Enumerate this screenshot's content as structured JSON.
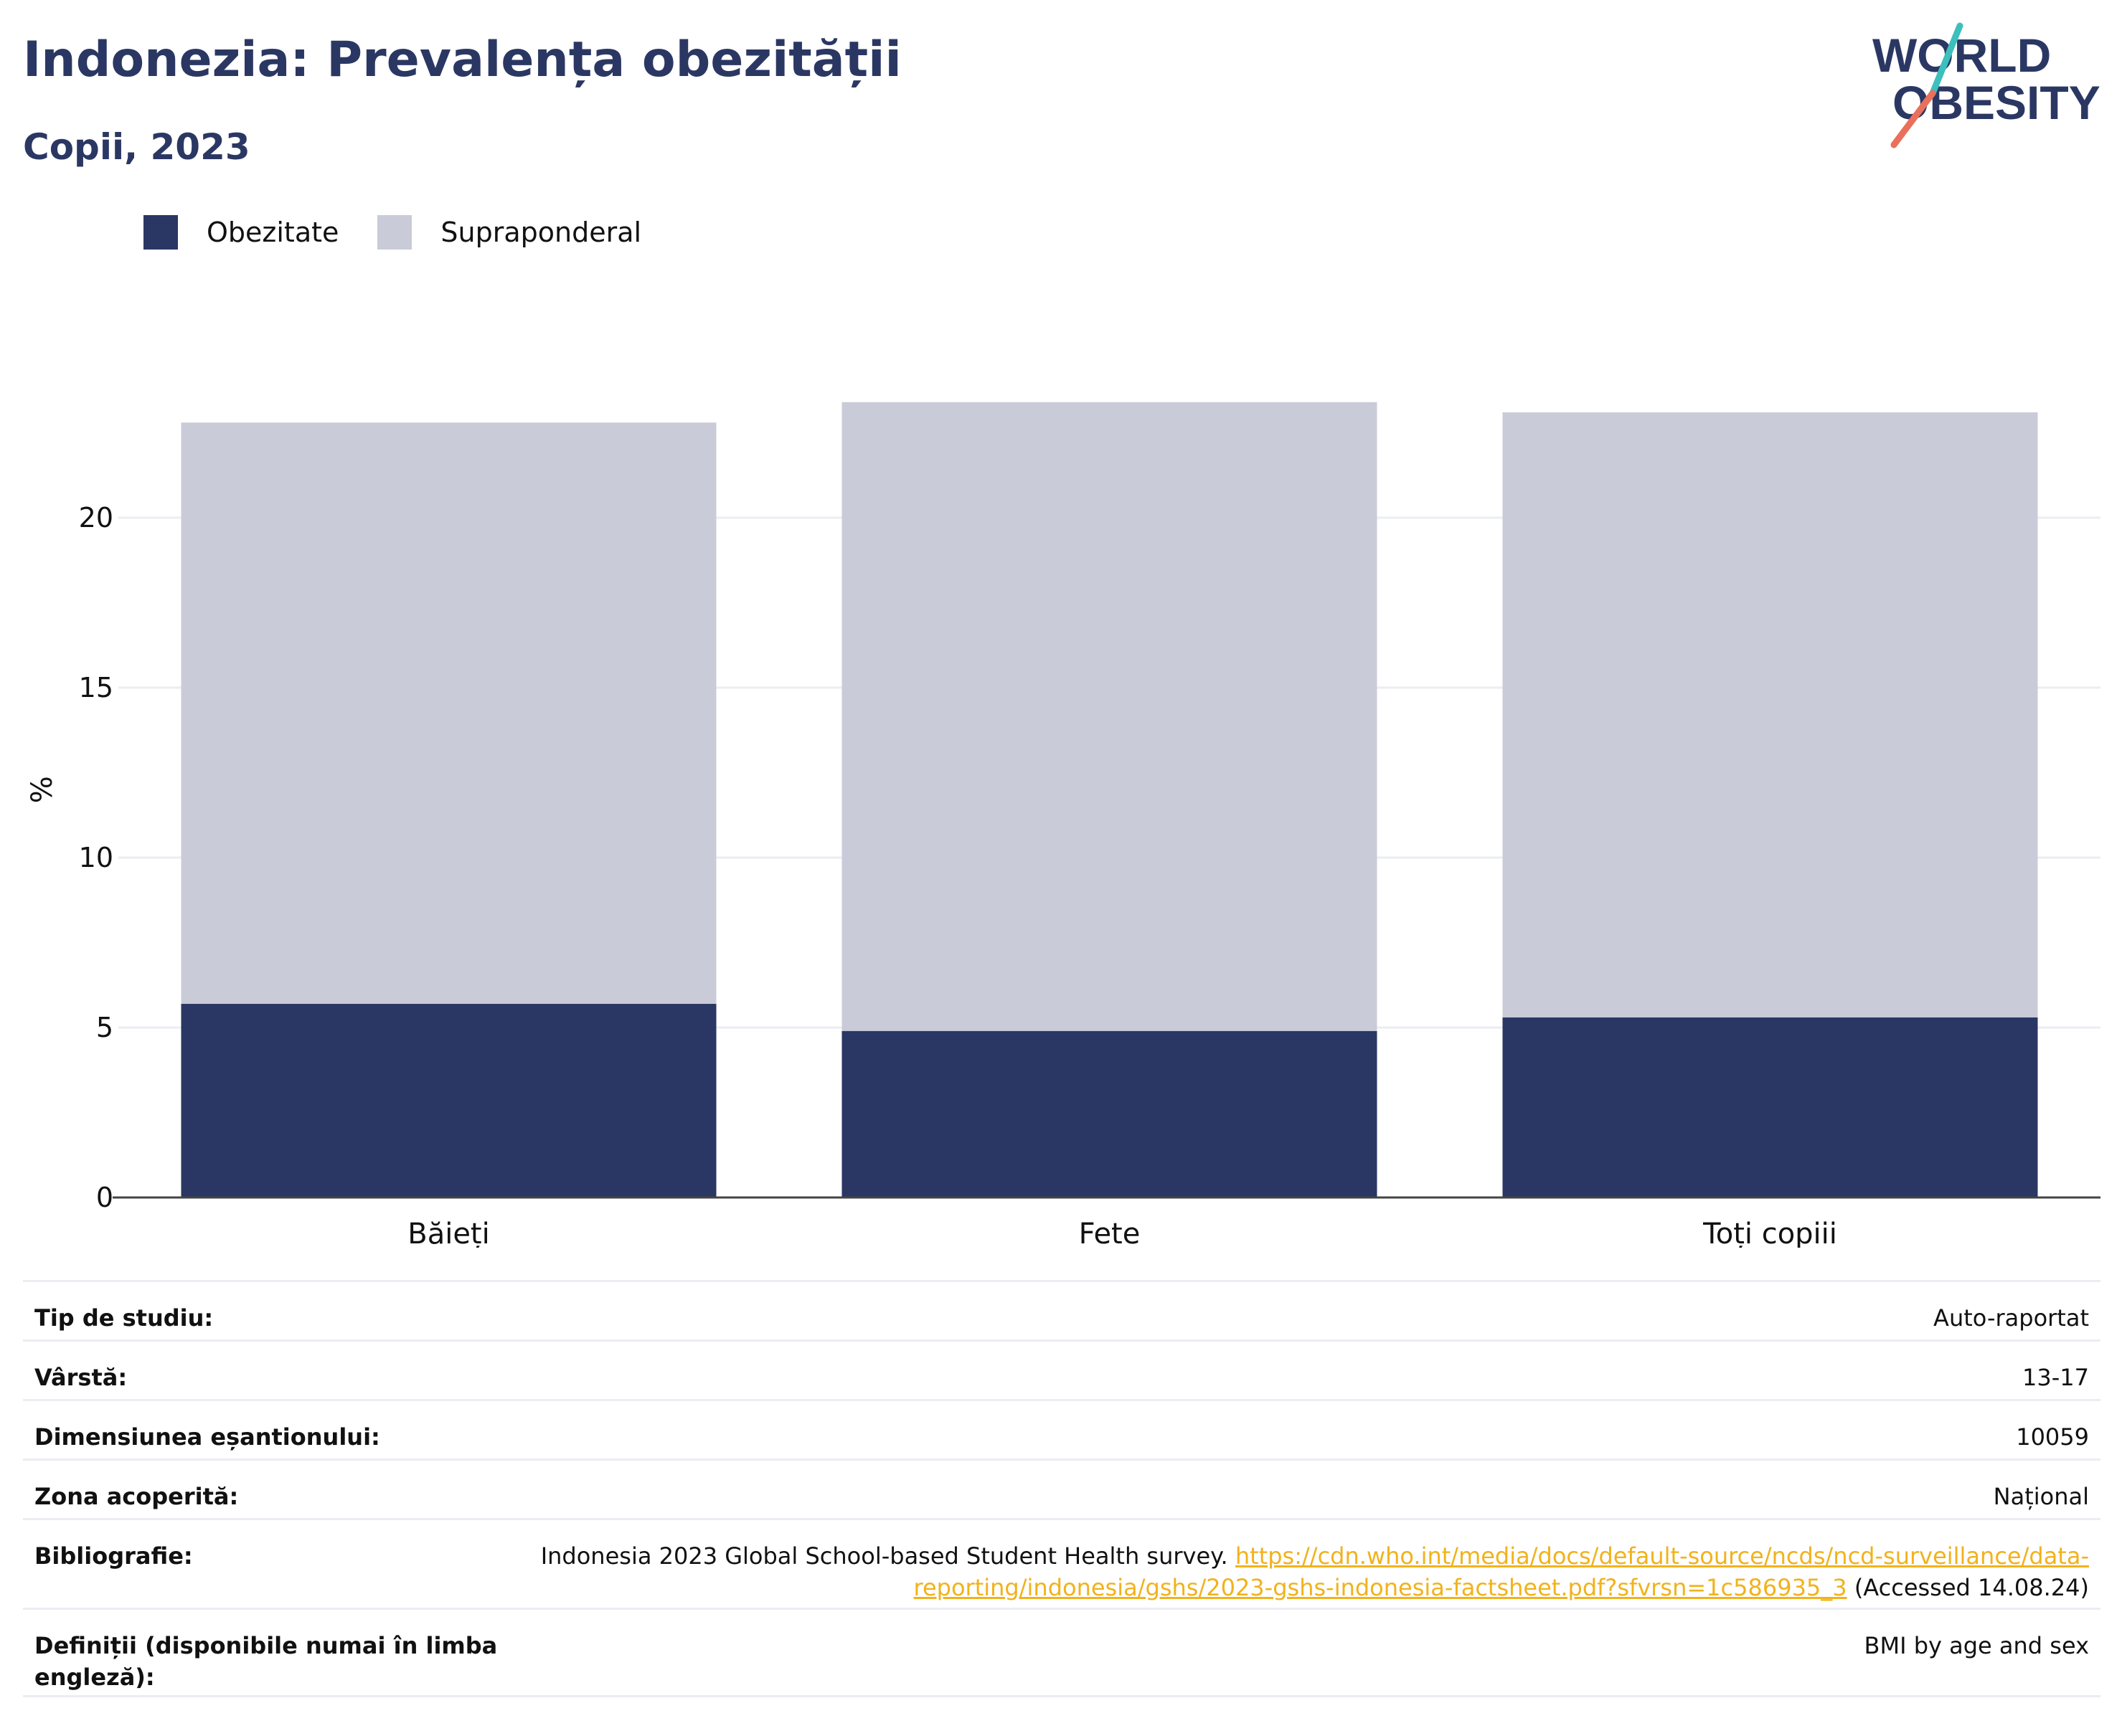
{
  "header": {
    "title": "Indonezia: Prevalența obezității",
    "subtitle": "Copii, 2023"
  },
  "logo": {
    "line1": "WORLD",
    "line2": "OBESITY"
  },
  "colors": {
    "title": "#2b3763",
    "obesity": "#2a3764",
    "overweight": "#cacbd8",
    "grid": "#ebedf3",
    "link": "#f1b21c",
    "logo_teal": "#3cbfbd",
    "logo_coral": "#e9705b"
  },
  "legend": [
    {
      "label": "Obezitate",
      "color": "#2a3764"
    },
    {
      "label": "Supraponderal",
      "color": "#cacbd8"
    }
  ],
  "chart_data": {
    "type": "bar",
    "stacked": true,
    "categories": [
      "Băieți",
      "Fete",
      "Toți copiii"
    ],
    "series": [
      {
        "name": "Obezitate",
        "color": "#2a3764",
        "values": [
          5.7,
          4.9,
          5.3
        ]
      },
      {
        "name": "Supraponderal",
        "color": "#cacbd8",
        "values": [
          17.1,
          18.5,
          17.8
        ]
      }
    ],
    "ylabel": "%",
    "xlabel": "",
    "ylim": [
      0,
      24
    ],
    "yticks": [
      0,
      5,
      10,
      15,
      20
    ],
    "grid": true,
    "legend_position": "top-left"
  },
  "info": {
    "rows": [
      {
        "label": "Tip de studiu:",
        "value": "Auto-raportat"
      },
      {
        "label": "Vârstă:",
        "value": "13-17"
      },
      {
        "label": "Dimensiunea eșantionului:",
        "value": "10059"
      },
      {
        "label": "Zona acoperită:",
        "value": "Național"
      }
    ],
    "bibliography": {
      "label": "Bibliografie:",
      "text": "Indonesia 2023 Global School-based Student Health survey.",
      "link_line1": "https://cdn.who.int/media/docs/default-source/ncds/ncd-surveillance/data-",
      "link_line2": "reporting/indonesia/gshs/2023-gshs-indonesia-factsheet.pdf?sfvrsn=1c586935_3",
      "accessed": "(Accessed 14.08.24)"
    },
    "definitions": {
      "label_line1": "Definiții (disponibile numai în limba",
      "label_line2": "engleză):",
      "value": "BMI by age and sex"
    }
  }
}
